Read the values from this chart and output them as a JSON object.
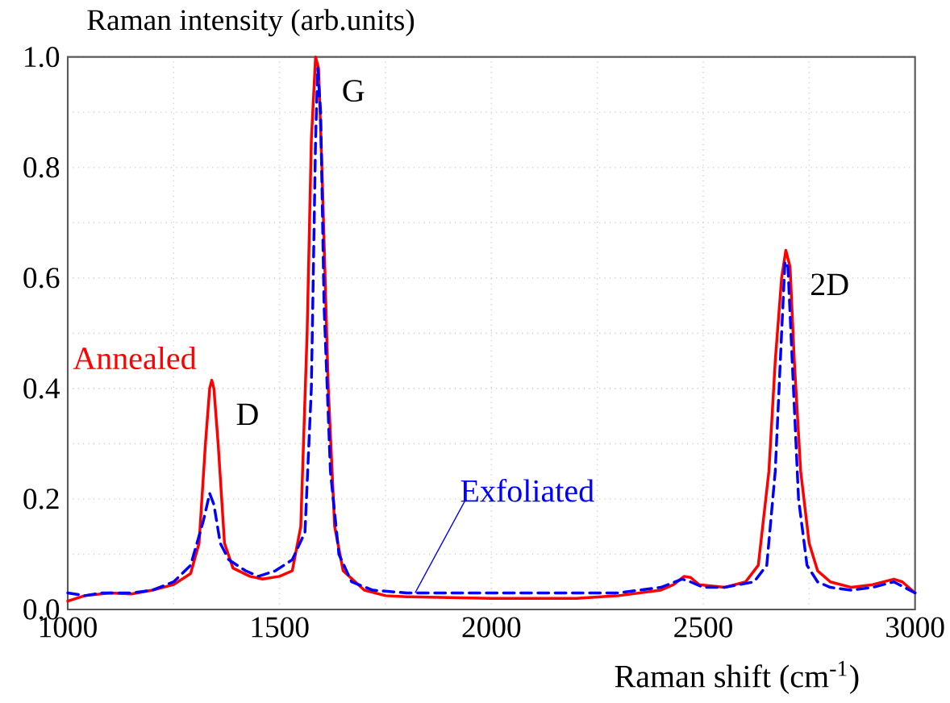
{
  "chart_data": {
    "type": "line",
    "xlabel": "Raman shift (cm$^{-1}$)",
    "ylabel": "Raman intensity (arb.units)",
    "xlim": [
      1000,
      3000
    ],
    "ylim": [
      0,
      1
    ],
    "xticks": [
      1000,
      {
        "value": 1250,
        "label": null
      },
      1500,
      {
        "value": 1750,
        "label": null
      },
      2000,
      {
        "value": 2250,
        "label": null
      },
      2500,
      {
        "value": 2750,
        "label": null
      },
      3000
    ],
    "yticks": [
      "0.0",
      {
        "value": 0.1,
        "label": null
      },
      {
        "value": 0.2,
        "label": "0.2"
      },
      {
        "value": 0.3,
        "label": null
      },
      {
        "value": 0.4,
        "label": "0.4"
      },
      {
        "value": 0.5,
        "label": null
      },
      {
        "value": 0.6,
        "label": "0.6"
      },
      {
        "value": 0.7,
        "label": null
      },
      {
        "value": 0.8,
        "label": "0.8"
      },
      {
        "value": 0.9,
        "label": null
      },
      {
        "value": 1.0,
        "label": "1.0"
      }
    ],
    "grid": true,
    "series": [
      {
        "name": "Annealed",
        "color": "#ff0000",
        "line_style": "solid",
        "x": [
          1000,
          1040,
          1100,
          1150,
          1200,
          1250,
          1290,
          1310,
          1325,
          1335,
          1340,
          1345,
          1355,
          1370,
          1390,
          1430,
          1460,
          1500,
          1530,
          1550,
          1565,
          1575,
          1585,
          1592,
          1600,
          1615,
          1630,
          1650,
          1700,
          1750,
          1800,
          2000,
          2200,
          2300,
          2400,
          2430,
          2455,
          2470,
          2490,
          2550,
          2600,
          2630,
          2655,
          2670,
          2685,
          2695,
          2705,
          2715,
          2730,
          2750,
          2770,
          2800,
          2850,
          2900,
          2950,
          2970,
          3000
        ],
        "values": [
          0.015,
          0.025,
          0.03,
          0.028,
          0.035,
          0.045,
          0.065,
          0.12,
          0.3,
          0.4,
          0.415,
          0.4,
          0.3,
          0.12,
          0.075,
          0.06,
          0.055,
          0.06,
          0.07,
          0.15,
          0.5,
          0.85,
          1.0,
          0.98,
          0.8,
          0.4,
          0.15,
          0.07,
          0.035,
          0.025,
          0.023,
          0.02,
          0.02,
          0.025,
          0.035,
          0.045,
          0.06,
          0.058,
          0.045,
          0.04,
          0.05,
          0.08,
          0.25,
          0.45,
          0.6,
          0.65,
          0.62,
          0.45,
          0.25,
          0.12,
          0.07,
          0.05,
          0.04,
          0.045,
          0.055,
          0.05,
          0.03
        ]
      },
      {
        "name": "Exfoliated",
        "color": "#0000ff",
        "line_style": "dashed",
        "x": [
          1000,
          1040,
          1080,
          1150,
          1200,
          1250,
          1290,
          1320,
          1335,
          1345,
          1360,
          1380,
          1420,
          1450,
          1490,
          1530,
          1560,
          1575,
          1585,
          1590,
          1597,
          1605,
          1620,
          1640,
          1670,
          1720,
          1800,
          2000,
          2200,
          2300,
          2400,
          2450,
          2470,
          2500,
          2550,
          2620,
          2650,
          2670,
          2685,
          2693,
          2700,
          2710,
          2725,
          2745,
          2770,
          2800,
          2850,
          2900,
          2950,
          3000
        ],
        "values": [
          0.03,
          0.025,
          0.03,
          0.03,
          0.035,
          0.05,
          0.08,
          0.16,
          0.21,
          0.19,
          0.12,
          0.09,
          0.07,
          0.06,
          0.07,
          0.09,
          0.14,
          0.4,
          0.85,
          0.98,
          0.9,
          0.55,
          0.25,
          0.1,
          0.05,
          0.035,
          0.03,
          0.03,
          0.03,
          0.03,
          0.04,
          0.055,
          0.05,
          0.04,
          0.04,
          0.05,
          0.08,
          0.25,
          0.5,
          0.63,
          0.62,
          0.45,
          0.2,
          0.08,
          0.05,
          0.04,
          0.035,
          0.04,
          0.05,
          0.03
        ]
      }
    ],
    "annotations": [
      {
        "text": "D",
        "x": 1340,
        "y": 0.415
      },
      {
        "text": "G",
        "x": 1590,
        "y": 1.0
      },
      {
        "text": "2D",
        "x": 2695,
        "y": 0.65
      }
    ]
  }
}
